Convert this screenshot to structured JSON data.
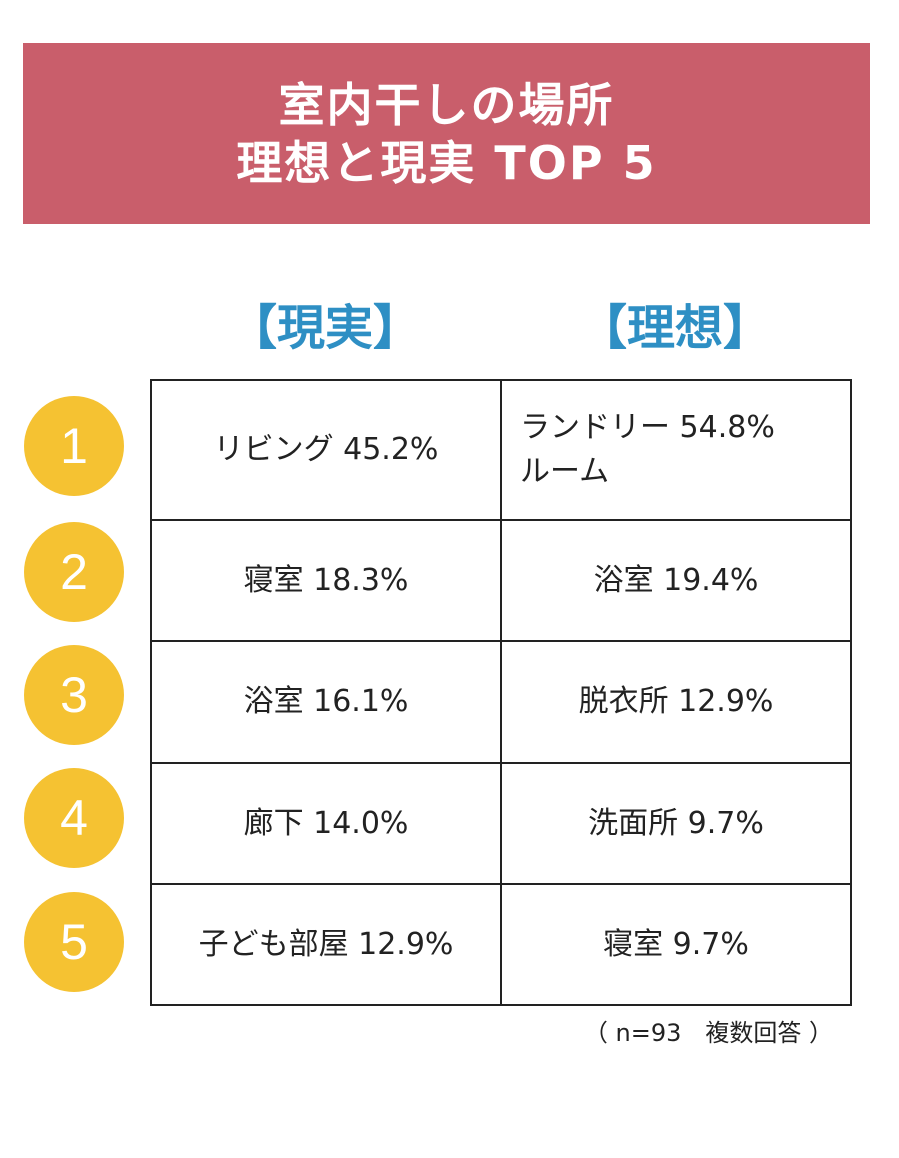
{
  "title": {
    "line1": "室内干しの場所",
    "line2": "理想と現実 TOP 5"
  },
  "columns": {
    "reality": "【現実】",
    "ideal": "【理想】"
  },
  "ranks": [
    "1",
    "2",
    "3",
    "4",
    "5"
  ],
  "rows": [
    {
      "reality": "リビング 45.2%",
      "ideal": "ランドリー 54.8%\nルーム"
    },
    {
      "reality": "寝室 18.3%",
      "ideal": "浴室 19.4%"
    },
    {
      "reality": "浴室 16.1%",
      "ideal": "脱衣所 12.9%"
    },
    {
      "reality": "廊下 14.0%",
      "ideal": "洗面所 9.7%"
    },
    {
      "reality": "子ども部屋 12.9%",
      "ideal": "寝室 9.7%"
    }
  ],
  "note": "（ n=93　複数回答 ）",
  "colors": {
    "banner": "#c95e6b",
    "heading": "#2e8fc4",
    "rank_circle": "#f5c232"
  }
}
